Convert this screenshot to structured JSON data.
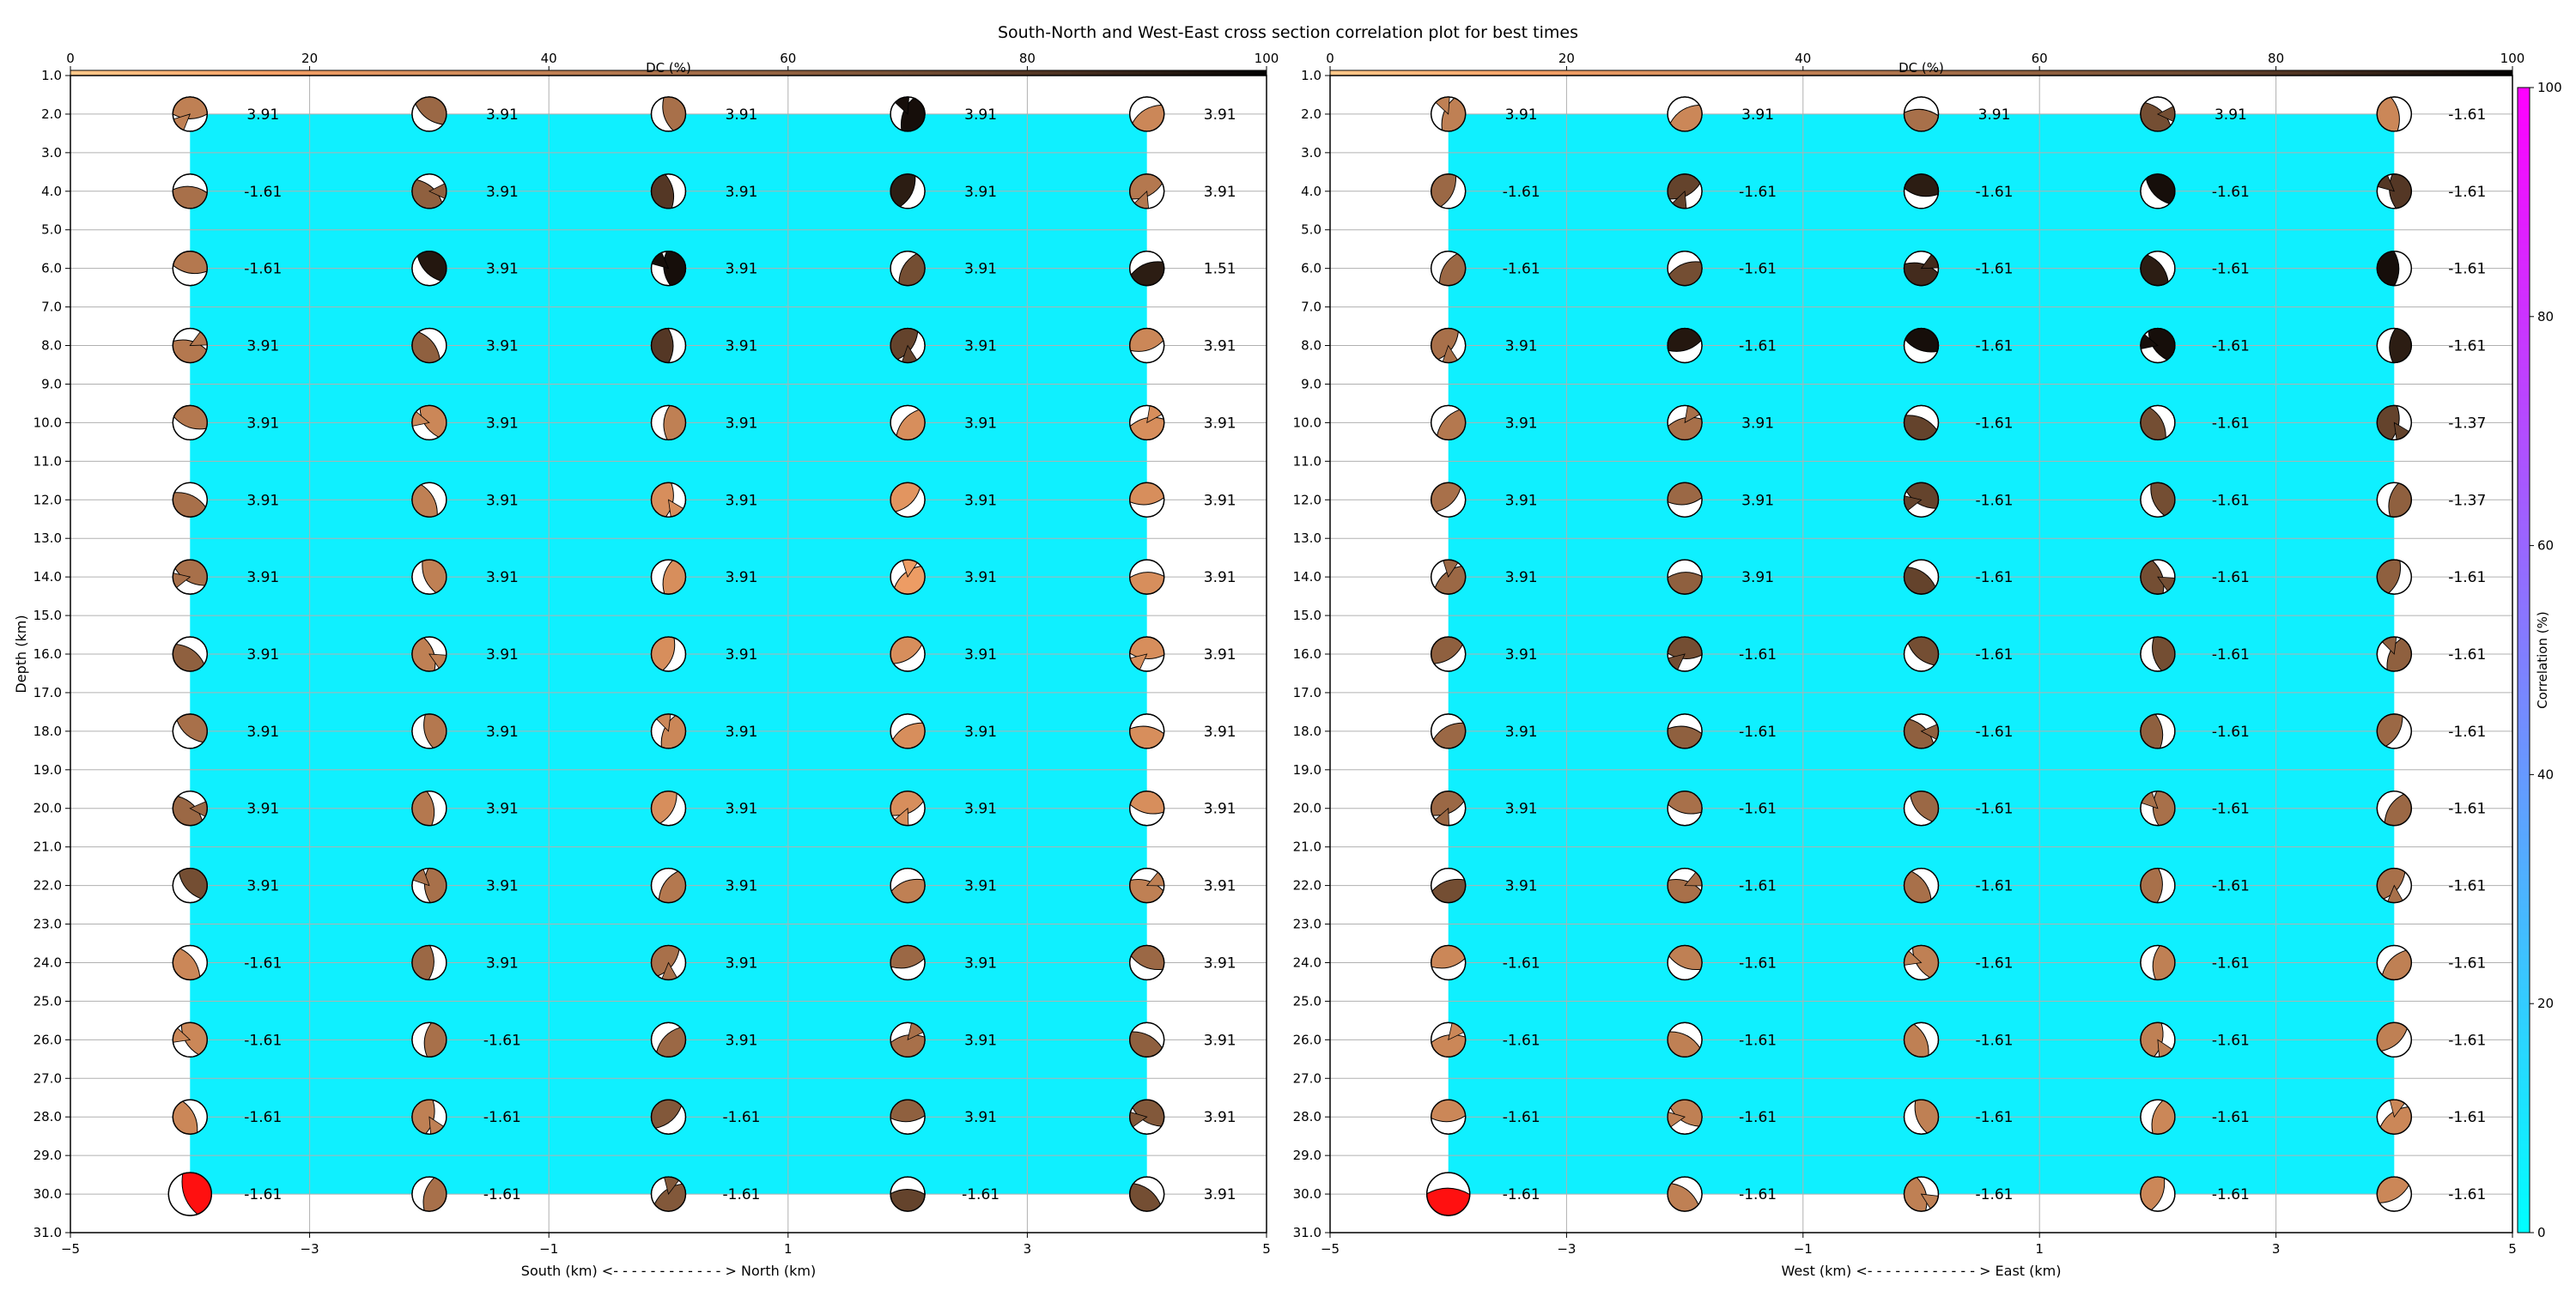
{
  "title": "South-North and West-East cross section correlation plot for best times",
  "colors": {
    "background_fill": "#0ff0ff",
    "dc_colormap": [
      "#ffc88a",
      "#f5a066",
      "#cf8a5a",
      "#a8704a",
      "#7e5538",
      "#4a3020",
      "#000000"
    ],
    "correlation_colormap": [
      "#00ffff",
      "#ff00ff"
    ],
    "highlight": "#ff1010"
  },
  "chart_data": [
    {
      "type": "scatter",
      "subtype": "beachball-grid",
      "xlabel": "South (km) <- - - - - - - - - - - - > North (km)",
      "ylabel": "Depth (km)",
      "xlim": [
        -5,
        5
      ],
      "ylim": [
        31,
        1
      ],
      "xticks": [
        -5,
        -3,
        -1,
        1,
        3,
        5
      ],
      "yticks": [
        1.0,
        2.0,
        3.0,
        4.0,
        5.0,
        6.0,
        7.0,
        8.0,
        9.0,
        10.0,
        11.0,
        12.0,
        13.0,
        14.0,
        15.0,
        16.0,
        17.0,
        18.0,
        19.0,
        20.0,
        21.0,
        22.0,
        23.0,
        24.0,
        25.0,
        26.0,
        27.0,
        28.0,
        29.0,
        30.0,
        31.0
      ],
      "grid": true,
      "x": [
        -4,
        -2,
        0,
        2,
        4
      ],
      "depths": [
        2,
        4,
        6,
        8,
        10,
        12,
        14,
        16,
        18,
        20,
        22,
        24,
        26,
        28,
        30
      ],
      "time_shift": [
        [
          "3.91",
          "3.91",
          "3.91",
          "3.91",
          "3.91"
        ],
        [
          "-1.61",
          "3.91",
          "3.91",
          "3.91",
          "3.91"
        ],
        [
          "-1.61",
          "3.91",
          "3.91",
          "3.91",
          "1.51"
        ],
        [
          "3.91",
          "3.91",
          "3.91",
          "3.91",
          "3.91"
        ],
        [
          "3.91",
          "3.91",
          "3.91",
          "3.91",
          "3.91"
        ],
        [
          "3.91",
          "3.91",
          "3.91",
          "3.91",
          "3.91"
        ],
        [
          "3.91",
          "3.91",
          "3.91",
          "3.91",
          "3.91"
        ],
        [
          "3.91",
          "3.91",
          "3.91",
          "3.91",
          "3.91"
        ],
        [
          "3.91",
          "3.91",
          "3.91",
          "3.91",
          "3.91"
        ],
        [
          "3.91",
          "3.91",
          "3.91",
          "3.91",
          "3.91"
        ],
        [
          "3.91",
          "3.91",
          "3.91",
          "3.91",
          "3.91"
        ],
        [
          "-1.61",
          "3.91",
          "3.91",
          "3.91",
          "3.91"
        ],
        [
          "-1.61",
          "-1.61",
          "3.91",
          "3.91",
          "3.91"
        ],
        [
          "-1.61",
          "-1.61",
          "-1.61",
          "3.91",
          "3.91"
        ],
        [
          "-1.61",
          "-1.61",
          "-1.61",
          "-1.61",
          "3.91"
        ]
      ],
      "dc_percent": [
        [
          40,
          55,
          50,
          95,
          35
        ],
        [
          50,
          60,
          80,
          90,
          45
        ],
        [
          45,
          92,
          95,
          70,
          90
        ],
        [
          45,
          60,
          80,
          75,
          35
        ],
        [
          45,
          35,
          40,
          30,
          30
        ],
        [
          50,
          40,
          30,
          25,
          30
        ],
        [
          50,
          40,
          30,
          20,
          30
        ],
        [
          60,
          40,
          30,
          30,
          30
        ],
        [
          50,
          45,
          35,
          30,
          30
        ],
        [
          55,
          45,
          30,
          30,
          30
        ],
        [
          70,
          50,
          45,
          40,
          40
        ],
        [
          35,
          55,
          50,
          55,
          55
        ],
        [
          35,
          50,
          55,
          50,
          60
        ],
        [
          35,
          40,
          65,
          60,
          65
        ],
        [
          0,
          50,
          65,
          75,
          70
        ]
      ],
      "highlight_point": {
        "x": -4,
        "depth": 30
      },
      "cell_fill": {
        "x": [
          -4,
          4
        ],
        "depth": [
          2,
          30
        ]
      },
      "colorbar": {
        "label": "DC (%)",
        "range": [
          0,
          100
        ],
        "ticks": [
          0,
          20,
          40,
          60,
          80,
          100
        ]
      }
    },
    {
      "type": "scatter",
      "subtype": "beachball-grid",
      "xlabel": "West (km) <- - - - - - - - - - - - > East (km)",
      "ylabel": "",
      "xlim": [
        -5,
        5
      ],
      "ylim": [
        31,
        1
      ],
      "xticks": [
        -5,
        -3,
        -1,
        1,
        3,
        5
      ],
      "yticks": [
        1.0,
        2.0,
        3.0,
        4.0,
        5.0,
        6.0,
        7.0,
        8.0,
        9.0,
        10.0,
        11.0,
        12.0,
        13.0,
        14.0,
        15.0,
        16.0,
        17.0,
        18.0,
        19.0,
        20.0,
        21.0,
        22.0,
        23.0,
        24.0,
        25.0,
        26.0,
        27.0,
        28.0,
        29.0,
        30.0,
        31.0
      ],
      "grid": true,
      "x": [
        -4,
        -2,
        0,
        2,
        4
      ],
      "depths": [
        2,
        4,
        6,
        8,
        10,
        12,
        14,
        16,
        18,
        20,
        22,
        24,
        26,
        28,
        30
      ],
      "time_shift": [
        [
          "3.91",
          "3.91",
          "3.91",
          "3.91",
          "-1.61"
        ],
        [
          "-1.61",
          "-1.61",
          "-1.61",
          "-1.61",
          "-1.61"
        ],
        [
          "-1.61",
          "-1.61",
          "-1.61",
          "-1.61",
          "-1.61"
        ],
        [
          "3.91",
          "-1.61",
          "-1.61",
          "-1.61",
          "-1.61"
        ],
        [
          "3.91",
          "3.91",
          "-1.61",
          "-1.61",
          "-1.37"
        ],
        [
          "3.91",
          "3.91",
          "-1.61",
          "-1.61",
          "-1.37"
        ],
        [
          "3.91",
          "3.91",
          "-1.61",
          "-1.61",
          "-1.61"
        ],
        [
          "3.91",
          "-1.61",
          "-1.61",
          "-1.61",
          "-1.61"
        ],
        [
          "3.91",
          "-1.61",
          "-1.61",
          "-1.61",
          "-1.61"
        ],
        [
          "3.91",
          "-1.61",
          "-1.61",
          "-1.61",
          "-1.61"
        ],
        [
          "3.91",
          "-1.61",
          "-1.61",
          "-1.61",
          "-1.61"
        ],
        [
          "-1.61",
          "-1.61",
          "-1.61",
          "-1.61",
          "-1.61"
        ],
        [
          "-1.61",
          "-1.61",
          "-1.61",
          "-1.61",
          "-1.61"
        ],
        [
          "-1.61",
          "-1.61",
          "-1.61",
          "-1.61",
          "-1.61"
        ],
        [
          "-1.61",
          "-1.61",
          "-1.61",
          "-1.61",
          "-1.61"
        ]
      ],
      "dc_percent": [
        [
          40,
          35,
          50,
          70,
          35
        ],
        [
          55,
          75,
          90,
          95,
          80
        ],
        [
          55,
          70,
          85,
          90,
          95
        ],
        [
          50,
          92,
          95,
          95,
          90
        ],
        [
          45,
          50,
          75,
          70,
          75
        ],
        [
          50,
          55,
          75,
          70,
          60
        ],
        [
          55,
          60,
          75,
          70,
          60
        ],
        [
          60,
          70,
          70,
          70,
          60
        ],
        [
          55,
          60,
          60,
          60,
          55
        ],
        [
          55,
          50,
          55,
          50,
          55
        ],
        [
          70,
          50,
          50,
          50,
          50
        ],
        [
          35,
          40,
          40,
          40,
          40
        ],
        [
          35,
          40,
          40,
          40,
          40
        ],
        [
          35,
          40,
          40,
          35,
          35
        ],
        [
          0,
          40,
          40,
          35,
          35
        ]
      ],
      "highlight_point": {
        "x": -4,
        "depth": 30
      },
      "cell_fill": {
        "x": [
          -4,
          4
        ],
        "depth": [
          2,
          30
        ]
      },
      "colorbar": {
        "label": "DC (%)",
        "range": [
          0,
          100
        ],
        "ticks": [
          0,
          20,
          40,
          60,
          80,
          100
        ]
      }
    }
  ],
  "correlation_colorbar": {
    "label": "Correlation (%)",
    "range": [
      0,
      100
    ],
    "ticks": [
      0,
      20,
      40,
      60,
      80,
      100
    ]
  }
}
